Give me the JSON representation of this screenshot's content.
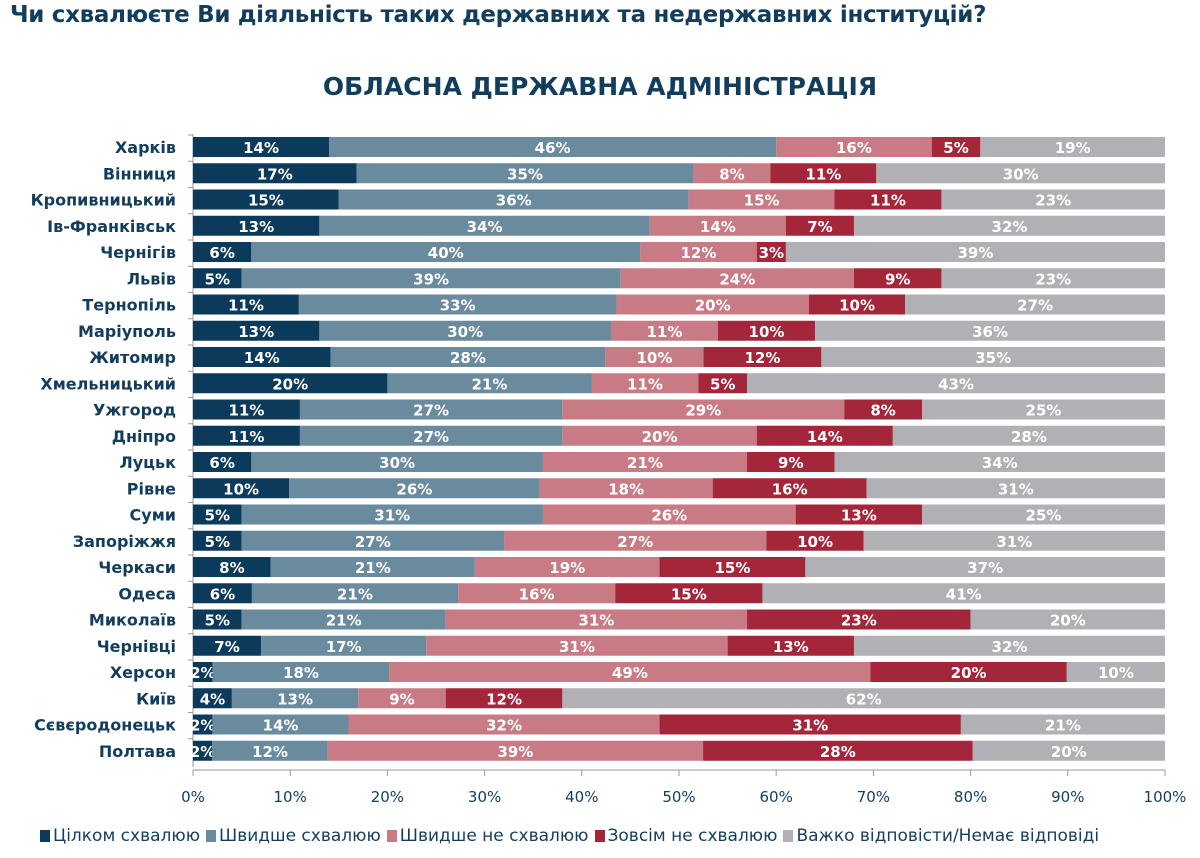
{
  "question": "Чи схвалюєте Ви діяльність таких державних та недержавних інституцій?",
  "chart_data": {
    "type": "bar",
    "orientation": "horizontal-stacked-100",
    "title": "ОБЛАСНА ДЕРЖАВНА АДМІНІСТРАЦІЯ",
    "xlim": [
      0,
      100
    ],
    "xticks": [
      "0%",
      "10%",
      "20%",
      "30%",
      "40%",
      "50%",
      "60%",
      "70%",
      "80%",
      "90%",
      "100%"
    ],
    "legend_position": "bottom",
    "categories": [
      "Харків",
      "Вінниця",
      "Кропивницький",
      "Ів-Франківськ",
      "Чернігів",
      "Львів",
      "Тернопіль",
      "Маріуполь",
      "Житомир",
      "Хмельницький",
      "Ужгород",
      "Дніпро",
      "Луцьк",
      "Рівне",
      "Суми",
      "Запоріжжя",
      "Черкаси",
      "Одеса",
      "Миколаїв",
      "Чернівці",
      "Херсон",
      "Київ",
      "Сєвєродонецьк",
      "Полтава"
    ],
    "series": [
      {
        "name": "Цілком схвалюю",
        "color": "#0b3a5a",
        "values": [
          14,
          17,
          15,
          13,
          6,
          5,
          11,
          13,
          14,
          20,
          11,
          11,
          6,
          10,
          5,
          5,
          8,
          6,
          5,
          7,
          2,
          4,
          2,
          2
        ]
      },
      {
        "name": "Швидше схвалюю",
        "color": "#6a8a9d",
        "values": [
          46,
          35,
          36,
          34,
          40,
          39,
          33,
          30,
          28,
          21,
          27,
          27,
          30,
          26,
          31,
          27,
          21,
          21,
          21,
          17,
          18,
          13,
          14,
          12
        ]
      },
      {
        "name": "Швидше не схвалюю",
        "color": "#c97b85",
        "values": [
          16,
          8,
          15,
          14,
          12,
          24,
          20,
          11,
          10,
          11,
          29,
          20,
          21,
          18,
          26,
          27,
          19,
          16,
          31,
          31,
          49,
          9,
          32,
          39
        ]
      },
      {
        "name": "Зовсім не схвалюю",
        "color": "#a4263a",
        "values": [
          5,
          11,
          11,
          7,
          3,
          9,
          10,
          10,
          12,
          5,
          8,
          14,
          9,
          16,
          13,
          10,
          15,
          15,
          23,
          13,
          20,
          12,
          31,
          28
        ]
      },
      {
        "name": "Важко відповісти/Немає відповіді",
        "color": "#b1b0b4",
        "values": [
          19,
          30,
          23,
          32,
          39,
          23,
          27,
          36,
          35,
          43,
          25,
          28,
          34,
          31,
          25,
          31,
          37,
          41,
          20,
          32,
          10,
          62,
          21,
          20
        ]
      }
    ]
  }
}
